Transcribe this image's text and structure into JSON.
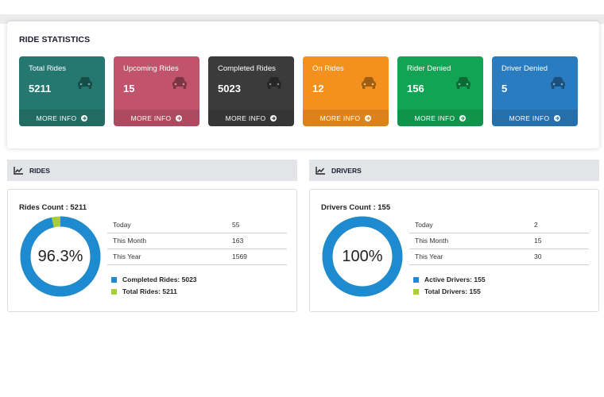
{
  "ride_statistics": {
    "title": "RIDE STATISTICS",
    "cards": [
      {
        "label": "Total Rides",
        "value": "5211",
        "more": "MORE INFO",
        "color": "#25786f"
      },
      {
        "label": "Upcoming Rides",
        "value": "15",
        "more": "MORE INFO",
        "color": "#c1536a"
      },
      {
        "label": "Completed Rides",
        "value": "5023",
        "more": "MORE INFO",
        "color": "#3b3b3b"
      },
      {
        "label": "On Rides",
        "value": "12",
        "more": "MORE INFO",
        "color": "#f4911e"
      },
      {
        "label": "Rider Denied",
        "value": "156",
        "more": "MORE INFO",
        "color": "#12a454"
      },
      {
        "label": "Driver Denied",
        "value": "5",
        "more": "MORE INFO",
        "color": "#2a7cc0"
      }
    ]
  },
  "rides": {
    "section_title": "RIDES",
    "box_title": "Rides Count : 5211",
    "donut_label": "96.3%",
    "donut_fraction": 0.963,
    "rows": [
      {
        "label": "Today",
        "value": "55"
      },
      {
        "label": "This Month",
        "value": "163"
      },
      {
        "label": "This Year",
        "value": "1569"
      }
    ],
    "legend": [
      {
        "label": "Completed Rides: 5023",
        "color": "#1e8bd0"
      },
      {
        "label": "Total Rides: 5211",
        "color": "#a9cc3a"
      }
    ]
  },
  "drivers": {
    "section_title": "DRIVERS",
    "box_title": "Drivers Count : 155",
    "donut_label": "100%",
    "donut_fraction": 1.0,
    "rows": [
      {
        "label": "Today",
        "value": "2"
      },
      {
        "label": "This Month",
        "value": "15"
      },
      {
        "label": "This Year",
        "value": "30"
      }
    ],
    "legend": [
      {
        "label": "Active Drivers: 155",
        "color": "#1e8bd0"
      },
      {
        "label": "Total Drivers: 155",
        "color": "#a9cc3a"
      }
    ]
  },
  "icons": {
    "card": "car-icon",
    "more": "arrow-circle-right-icon",
    "section": "line-chart-icon"
  }
}
